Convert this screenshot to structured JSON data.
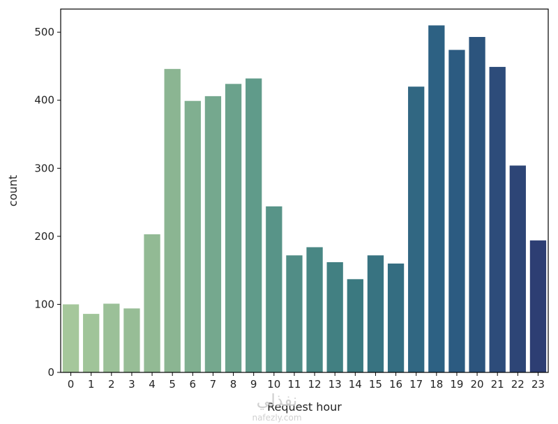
{
  "chart_data": {
    "type": "bar",
    "xlabel": "Request hour",
    "ylabel": "count",
    "categories": [
      "0",
      "1",
      "2",
      "3",
      "4",
      "5",
      "6",
      "7",
      "8",
      "9",
      "10",
      "11",
      "12",
      "13",
      "14",
      "15",
      "16",
      "17",
      "18",
      "19",
      "20",
      "21",
      "22",
      "23"
    ],
    "values": [
      100,
      86,
      101,
      94,
      203,
      446,
      399,
      406,
      424,
      432,
      244,
      172,
      184,
      162,
      137,
      172,
      160,
      420,
      510,
      474,
      493,
      449,
      304,
      194
    ],
    "ylim": [
      0,
      534
    ],
    "yticks": [
      0,
      100,
      200,
      300,
      400,
      500
    ],
    "grid": false,
    "palette": [
      "#a5c79b",
      "#8fb893",
      "#5e9a8a",
      "#3c7a80",
      "#2c5f83",
      "#2d3e73"
    ]
  },
  "watermark": {
    "arabic": "نفذلي",
    "latin": "nafezly.com"
  }
}
